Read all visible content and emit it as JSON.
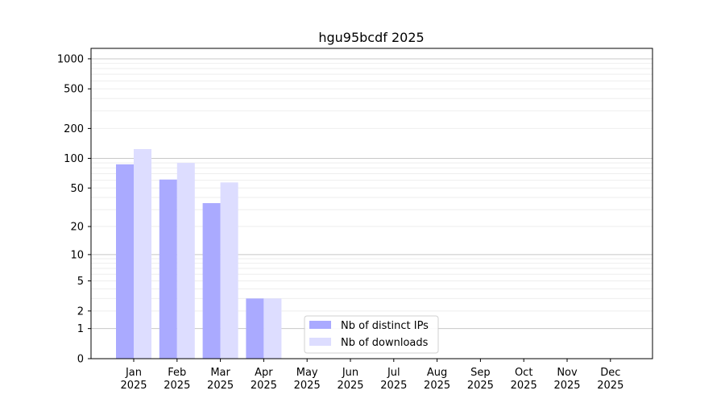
{
  "chart_data": {
    "type": "bar",
    "title": "hgu95bcdf 2025",
    "xlabel": "",
    "ylabel": "",
    "yscale": "symlog (log10(1+y))",
    "ylim": [
      0,
      1200
    ],
    "yticks": [
      0,
      1,
      2,
      5,
      10,
      20,
      50,
      100,
      200,
      500,
      1000
    ],
    "grid": true,
    "legend_position": "lower-center",
    "categories": [
      "Jan\n2025",
      "Feb\n2025",
      "Mar\n2025",
      "Apr\n2025",
      "May\n2025",
      "Jun\n2025",
      "Jul\n2025",
      "Aug\n2025",
      "Sep\n2025",
      "Oct\n2025",
      "Nov\n2025",
      "Dec\n2025"
    ],
    "series": [
      {
        "name": "Nb of distinct IPs",
        "color": "#aaaaff",
        "values": [
          87,
          61,
          35,
          3,
          0,
          0,
          0,
          0,
          0,
          0,
          0,
          0
        ]
      },
      {
        "name": "Nb of downloads",
        "color": "#ddddff",
        "values": [
          124,
          90,
          57,
          3,
          0,
          0,
          0,
          0,
          0,
          0,
          0,
          0
        ]
      }
    ]
  }
}
